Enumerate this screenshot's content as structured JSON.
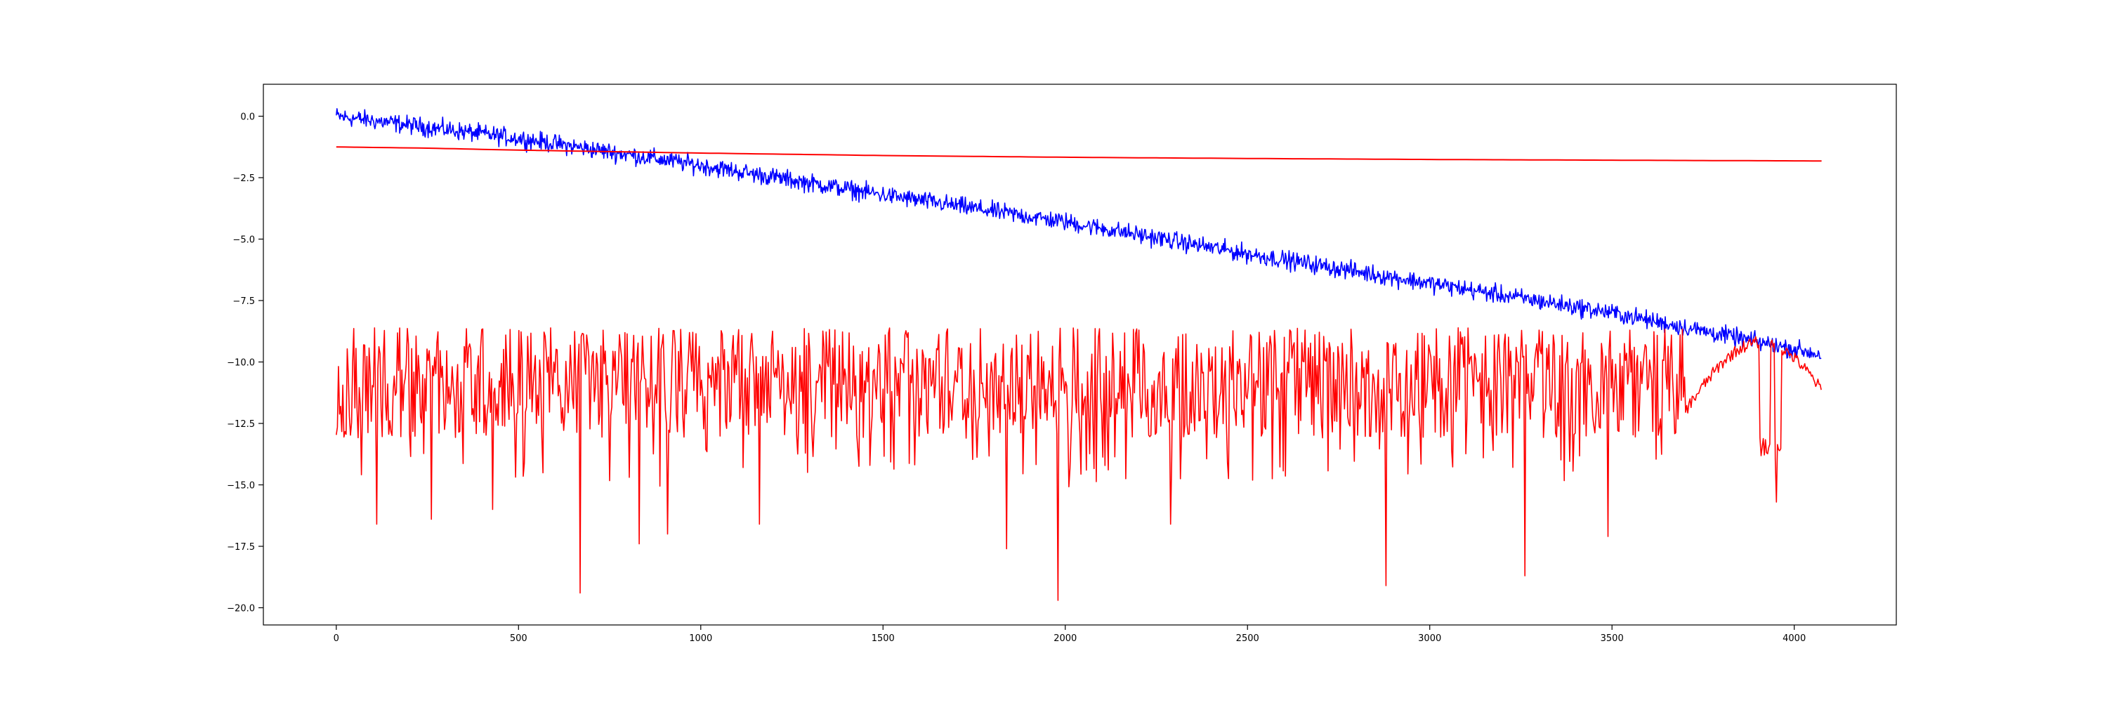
{
  "chart_data": {
    "type": "line",
    "title": "",
    "xlabel": "",
    "ylabel": "",
    "xlim": [
      -200,
      4280
    ],
    "ylim": [
      -20.7,
      1.3
    ],
    "xticks": [
      0,
      500,
      1000,
      1500,
      2000,
      2500,
      3000,
      3500,
      4000
    ],
    "xtick_labels": [
      "0",
      "500",
      "1000",
      "1500",
      "2000",
      "2500",
      "3000",
      "3500",
      "4000"
    ],
    "yticks": [
      0.0,
      -2.5,
      -5.0,
      -7.5,
      -10.0,
      -12.5,
      -15.0,
      -17.5,
      -20.0
    ],
    "ytick_labels": [
      "0.0",
      "−2.5",
      "−5.0",
      "−7.5",
      "−10.0",
      "−12.5",
      "−15.0",
      "−17.5",
      "−20.0"
    ],
    "grid": false,
    "legend": null,
    "series": [
      {
        "color": "#0000ff",
        "style": "noisy-trend",
        "x_range": [
          0,
          4075
        ],
        "trend_points": [
          [
            0,
            0.0
          ],
          [
            500,
            -0.9
          ],
          [
            1000,
            -2.0
          ],
          [
            1500,
            -3.2
          ],
          [
            2000,
            -4.3
          ],
          [
            2500,
            -5.6
          ],
          [
            3000,
            -6.8
          ],
          [
            3500,
            -8.0
          ],
          [
            4075,
            -9.7
          ]
        ],
        "noise_amplitude": 0.28
      },
      {
        "color": "#ff0000",
        "style": "smooth",
        "points": [
          [
            0,
            -1.25
          ],
          [
            250,
            -1.3
          ],
          [
            500,
            -1.38
          ],
          [
            1000,
            -1.5
          ],
          [
            1500,
            -1.6
          ],
          [
            2000,
            -1.67
          ],
          [
            2500,
            -1.72
          ],
          [
            3000,
            -1.76
          ],
          [
            3500,
            -1.79
          ],
          [
            4075,
            -1.82
          ]
        ]
      },
      {
        "color": "#ff0000",
        "style": "noisy-band",
        "x_range": [
          0,
          4075
        ],
        "baseline": -10.8,
        "band": [
          -9.0,
          -13.5
        ],
        "spikes": [
          [
            110,
            -16.6
          ],
          [
            260,
            -16.4
          ],
          [
            430,
            -16.0
          ],
          [
            670,
            -19.4
          ],
          [
            830,
            -17.4
          ],
          [
            910,
            -17.0
          ],
          [
            1160,
            -16.6
          ],
          [
            1840,
            -17.6
          ],
          [
            1980,
            -19.7
          ],
          [
            2290,
            -16.6
          ],
          [
            2880,
            -19.1
          ],
          [
            3260,
            -18.7
          ],
          [
            3490,
            -17.1
          ],
          [
            3950,
            -15.7
          ]
        ],
        "smooth_segments": [
          [
            3700,
            4075
          ]
        ]
      }
    ]
  }
}
